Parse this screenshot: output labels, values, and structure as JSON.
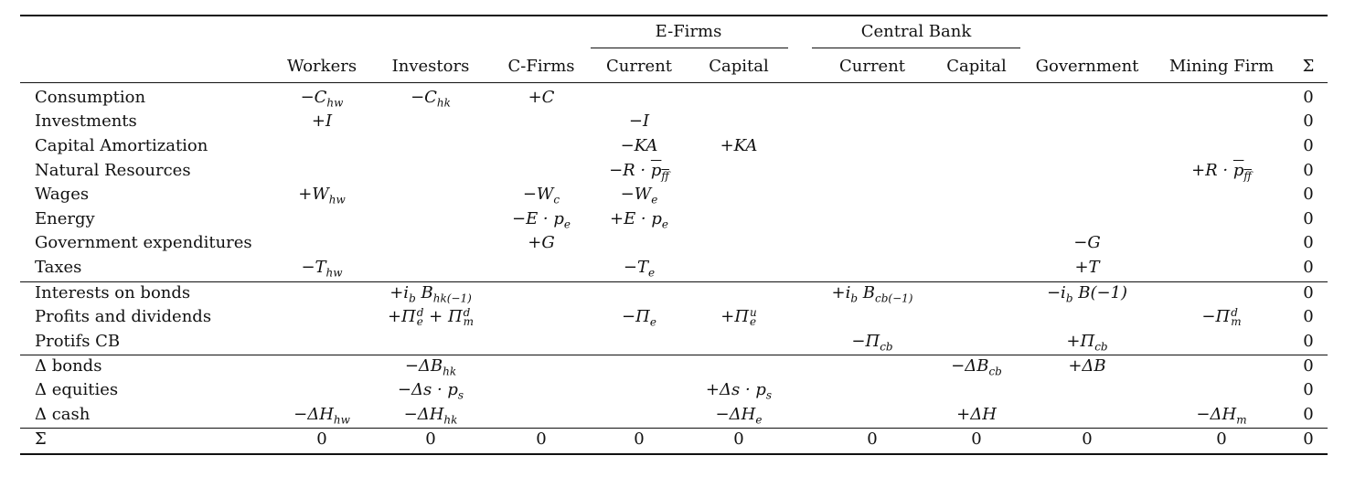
{
  "table": {
    "group_headers": {
      "e_firms": "E-Firms",
      "central_bank": "Central Bank"
    },
    "columns": {
      "workers": "Workers",
      "investors": "Investors",
      "cfirms": "C-Firms",
      "ef_current": "Current",
      "ef_capital": "Capital",
      "cb_current": "Current",
      "cb_capital": "Capital",
      "government": "Government",
      "mining": "Mining Firm",
      "sigma": "Σ"
    },
    "rows": [
      {
        "label": "Consumption",
        "cells": {
          "workers": "−C_hw",
          "investors": "−C_hk",
          "cfirms": "+C"
        },
        "sigma": "0"
      },
      {
        "label": "Investments",
        "cells": {
          "workers": "+I",
          "ef_current": "−I"
        },
        "sigma": "0"
      },
      {
        "label": "Capital Amortization",
        "cells": {
          "ef_current": "−KA",
          "ef_capital": "+KA"
        },
        "sigma": "0"
      },
      {
        "label": "Natural Resources",
        "cells": {
          "ef_current": "−R · p̅ff",
          "mining": "+R · p̅ff"
        },
        "sigma": "0"
      },
      {
        "label": "Wages",
        "cells": {
          "workers": "+W_hw",
          "cfirms": "−W_c",
          "ef_current": "−W_e"
        },
        "sigma": "0"
      },
      {
        "label": "Energy",
        "cells": {
          "cfirms": "−E · p_e",
          "ef_current": "+E · p_e"
        },
        "sigma": "0"
      },
      {
        "label": "Government expenditures",
        "cells": {
          "cfirms": "+G",
          "government": "−G"
        },
        "sigma": "0"
      },
      {
        "label": "Taxes",
        "cells": {
          "workers": "−T_hw",
          "ef_current": "−T_e",
          "government": "+T"
        },
        "sigma": "0"
      },
      {
        "label": "Interests on bonds",
        "cells": {
          "investors": "+i_b B_hk(−1)",
          "cb_current": "+i_b B_cb(−1)",
          "government": "−i_b B(−1)"
        },
        "sigma": "0"
      },
      {
        "label": "Profits and dividends",
        "cells": {
          "investors": "+Π^d_e + Π^d_m",
          "ef_current": "−Π_e",
          "ef_capital": "+Π^u_e",
          "mining": "−Π^d_m"
        },
        "sigma": "0"
      },
      {
        "label": "Protifs CB",
        "cells": {
          "cb_current": "−Π_cb",
          "government": "+Π_cb"
        },
        "sigma": "0"
      },
      {
        "label": "Δ bonds",
        "cells": {
          "investors": "−ΔB_hk",
          "cb_capital": "−ΔB_cb",
          "government": "+ΔB"
        },
        "sigma": "0"
      },
      {
        "label": "Δ equities",
        "cells": {
          "investors": "−Δs · p_s",
          "ef_capital": "+Δs · p_s"
        },
        "sigma": "0"
      },
      {
        "label": "Δ cash",
        "cells": {
          "workers": "−ΔH_hw",
          "investors": "−ΔH_hk",
          "ef_capital": "−ΔH_e",
          "cb_capital": "+ΔH",
          "mining": "−ΔH_m"
        },
        "sigma": "0"
      }
    ],
    "total_row": {
      "label": "Σ",
      "values": [
        "0",
        "0",
        "0",
        "0",
        "0",
        "0",
        "0",
        "0",
        "0",
        "0"
      ]
    }
  }
}
